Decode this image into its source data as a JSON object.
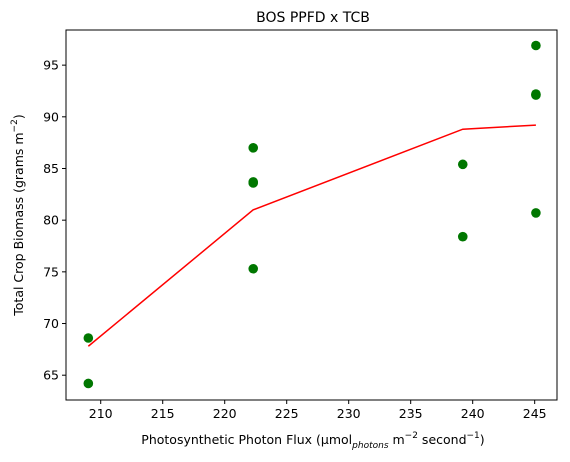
{
  "chart_data": {
    "type": "scatter",
    "title": "BOS PPFD x TCB",
    "xlabel": {
      "main": "Photosynthetic Photon Flux (μmol",
      "sub": "photons",
      "mid": " m",
      "sup1": "−2",
      "mid2": " second",
      "sup2": "−1",
      "close": ")"
    },
    "ylabel": {
      "main": "Total Crop Biomass (grams m",
      "sup": "−2",
      "close": ")"
    },
    "xlim": [
      207.2,
      246.8
    ],
    "ylim": [
      62.6,
      98.4
    ],
    "xticks": [
      210,
      215,
      220,
      225,
      230,
      235,
      240,
      245
    ],
    "yticks": [
      65,
      70,
      75,
      80,
      85,
      90,
      95
    ],
    "grid": false,
    "series": [
      {
        "kind": "scatter",
        "color": "#007700",
        "points": [
          [
            209,
            68.6
          ],
          [
            209,
            64.2
          ],
          [
            222.3,
            87.0
          ],
          [
            222.3,
            83.6
          ],
          [
            222.3,
            83.7
          ],
          [
            222.3,
            75.3
          ],
          [
            239.2,
            85.4
          ],
          [
            239.2,
            78.4
          ],
          [
            245.1,
            96.9
          ],
          [
            245.1,
            92.2
          ],
          [
            245.1,
            92.1
          ],
          [
            245.1,
            80.7
          ]
        ]
      },
      {
        "kind": "line",
        "color": "#ff0000",
        "points": [
          [
            209,
            67.8
          ],
          [
            222.3,
            81.0
          ],
          [
            239.2,
            88.8
          ],
          [
            245.1,
            89.2
          ]
        ]
      }
    ]
  }
}
